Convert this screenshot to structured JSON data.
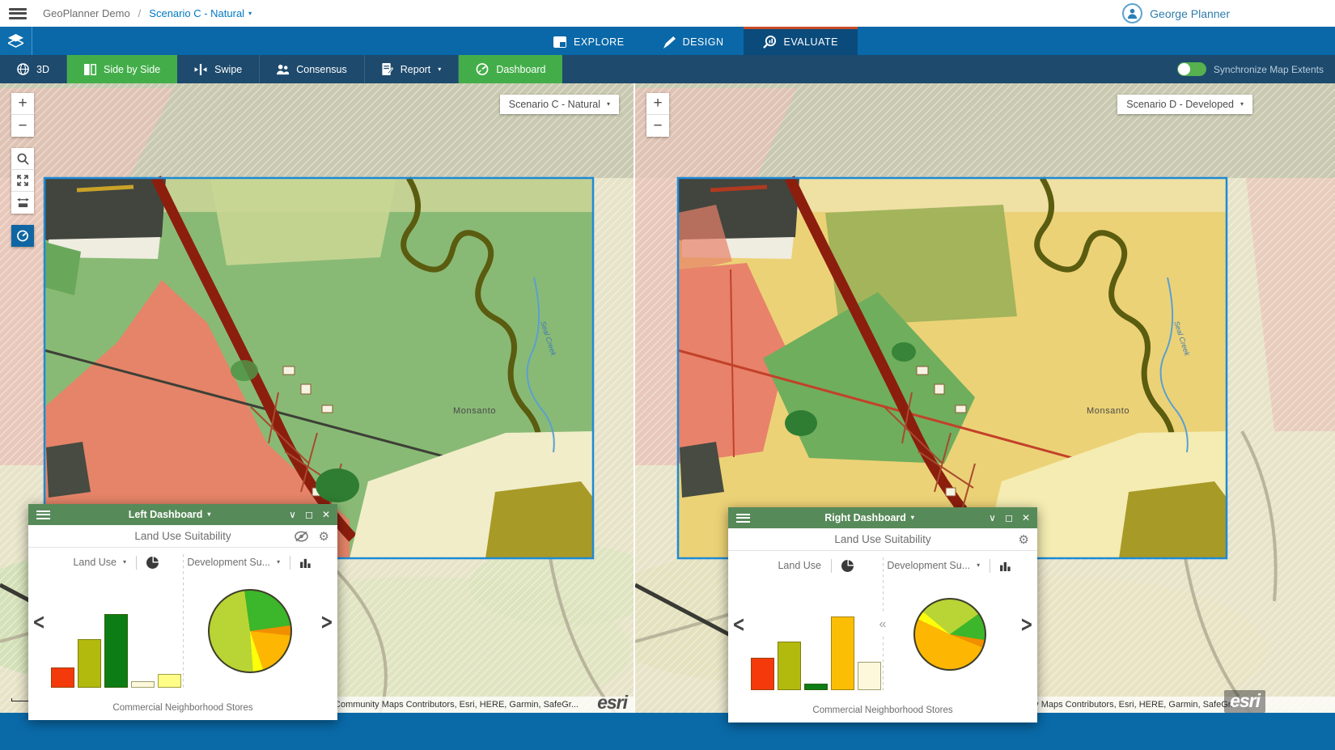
{
  "colors": {
    "accent_blue": "#0079c1",
    "nav_blue": "#0a68a8",
    "nav_active_tab": "#0a4b7c",
    "nav_active_border": "#c84b2a",
    "toolbar_navy": "#1d4a6d",
    "active_green": "#43ae49",
    "dashboard_header_green": "#578a59",
    "extent_border_blue": "#1e8ad5",
    "bottom_bar_blue": "#0a6aa8"
  },
  "icons": {
    "gear": "⚙",
    "close": "✕",
    "collapse": "∨",
    "maximize": "◻",
    "caret_down_small": "▾",
    "caret_down": "▼",
    "chevron_left": "<",
    "chevron_right": ">",
    "double_chevron_left": "«",
    "zoom_in": "+",
    "zoom_out": "−"
  },
  "header": {
    "app_name": "GeoPlanner Demo",
    "separator": "/",
    "scenario": "Scenario C - Natural",
    "user": "George Planner"
  },
  "nav": {
    "tabs": [
      {
        "label": "EXPLORE"
      },
      {
        "label": "DESIGN"
      },
      {
        "label": "EVALUATE"
      }
    ]
  },
  "toolbar": {
    "items": [
      {
        "label": "3D"
      },
      {
        "label": "Side by Side"
      },
      {
        "label": "Swipe"
      },
      {
        "label": "Consensus"
      },
      {
        "label": "Report"
      },
      {
        "label": "Dashboard"
      }
    ],
    "sync_label": "Synchronize Map Extents"
  },
  "maps": {
    "left": {
      "scenario_selector": "Scenario C - Natural",
      "place_label": "Monsanto",
      "creek_label": "Seal Creek",
      "attribution": "Esri Community Maps Contributors, Esri, HERE, Garmin, SafeGr...",
      "logo": "esri"
    },
    "right": {
      "scenario_selector": "Scenario D - Developed",
      "place_label": "Monsanto",
      "creek_label": "Seal Creek",
      "attribution": "Esri Community Maps Contributors, Esri, HERE, Garmin, SafeGr...",
      "logo": "esri"
    }
  },
  "dashboards": {
    "left": {
      "title": "Left Dashboard",
      "widget_title": "Land Use Suitability",
      "cards": [
        {
          "selector": "Land Use"
        },
        {
          "selector": "Development Su..."
        }
      ],
      "caption": "Commercial Neighborhood Stores"
    },
    "right": {
      "title": "Right Dashboard",
      "widget_title": "Land Use Suitability",
      "cards": [
        {
          "selector": "Land Use"
        },
        {
          "selector": "Development Su..."
        }
      ],
      "caption": "Commercial Neighborhood Stores"
    }
  },
  "chart_data": [
    {
      "id": "left-land-use-bar",
      "type": "bar",
      "title": "Land Use — Left Dashboard (Scenario C - Natural)",
      "values": [
        19,
        46,
        70,
        6,
        13
      ],
      "colors": [
        "#f4390b",
        "#b3ba0e",
        "#0c7d14",
        "#fdf8dc",
        "#fdfd87"
      ],
      "ylim": [
        0,
        100
      ],
      "xlabel": "",
      "ylabel": "",
      "categories_visible": false,
      "legend": false,
      "grid": false
    },
    {
      "id": "left-dev-suit-pie",
      "type": "pie",
      "title": "Development Suitability — Left Dashboard (Scenario C - Natural)",
      "start_angle_deg": -8,
      "slices": [
        {
          "color": "#3cb62a",
          "pct": 25
        },
        {
          "color": "#f08f00",
          "pct": 4
        },
        {
          "color": "#fdb602",
          "pct": 18
        },
        {
          "color": "#fefe0a",
          "pct": 4
        },
        {
          "color": "#b9d435",
          "pct": 49
        }
      ],
      "legend": false
    },
    {
      "id": "right-land-use-bar",
      "type": "bar",
      "title": "Land Use — Right Dashboard (Scenario D - Developed)",
      "values": [
        31,
        46,
        6,
        70,
        27
      ],
      "colors": [
        "#f4390b",
        "#b3ba0e",
        "#0c7d14",
        "#fcbe05",
        "#fdf8dc"
      ],
      "ylim": [
        0,
        100
      ],
      "xlabel": "",
      "ylabel": "",
      "categories_visible": false,
      "legend": false,
      "grid": false
    },
    {
      "id": "right-dev-suit-pie",
      "type": "pie",
      "title": "Development Suitability — Right Dashboard (Scenario D - Developed)",
      "start_angle_deg": -50,
      "slices": [
        {
          "color": "#b9d435",
          "pct": 29
        },
        {
          "color": "#3cb62a",
          "pct": 12.5
        },
        {
          "color": "#f08f00",
          "pct": 3.5
        },
        {
          "color": "#fdb602",
          "pct": 51
        },
        {
          "color": "#fefe0a",
          "pct": 4
        }
      ],
      "legend": false
    }
  ]
}
